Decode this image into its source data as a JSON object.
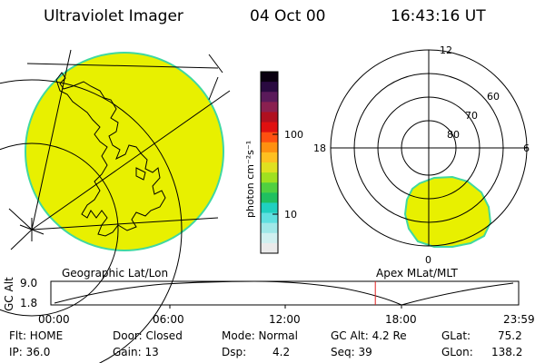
{
  "header": {
    "instrument": "Ultraviolet Imager",
    "date": "04 Oct 00",
    "time": "16:43:16 UT"
  },
  "colorbar": {
    "unit_label": "photon cm⁻²s⁻¹",
    "ticks": [
      "100",
      "10"
    ],
    "colors": [
      "#0a0010",
      "#2a0a40",
      "#5a1a5a",
      "#8a2050",
      "#b01020",
      "#e01010",
      "#ff5010",
      "#ff9010",
      "#ffc020",
      "#e0e020",
      "#a0e020",
      "#50d040",
      "#20c060",
      "#20d0c0",
      "#60e0e0",
      "#a0e8e8",
      "#d0f0f0",
      "#eaeaea"
    ]
  },
  "geo_map": {
    "label": "Geographic Lat/Lon",
    "fill_color": "#e8f000",
    "edge_color": "#40d8a0"
  },
  "polar_plot": {
    "label": "Apex MLat/MLT",
    "mlt_labels": {
      "top": "12",
      "left": "18",
      "right": "6",
      "bottom": "0"
    },
    "mlat_labels": [
      "60",
      "70",
      "80"
    ],
    "fill_color": "#e8f000",
    "edge_color": "#40d8a0"
  },
  "altitude_plot": {
    "y_title": "GC Alt",
    "y_ticks": [
      "9.0",
      "1.8"
    ],
    "x_ticks": [
      "00:00",
      "06:00",
      "12:00",
      "18:00",
      "23:59"
    ],
    "current_time_marker_hours": 16.72,
    "marker_color": "#e02020"
  },
  "status": {
    "flt": "Flt: HOME",
    "ip": "IP: 36.0",
    "door": "Door: Closed",
    "gain": "Gain: 13",
    "mode": "Mode: Normal",
    "dsp": "Dsp:",
    "dsp_value": "4.2",
    "gc_alt": "GC Alt: 4.2 Re",
    "seq": "Seq: 39",
    "glat": "GLat:",
    "glat_value": "75.2",
    "glon": "GLon:",
    "glon_value": "138.2"
  }
}
